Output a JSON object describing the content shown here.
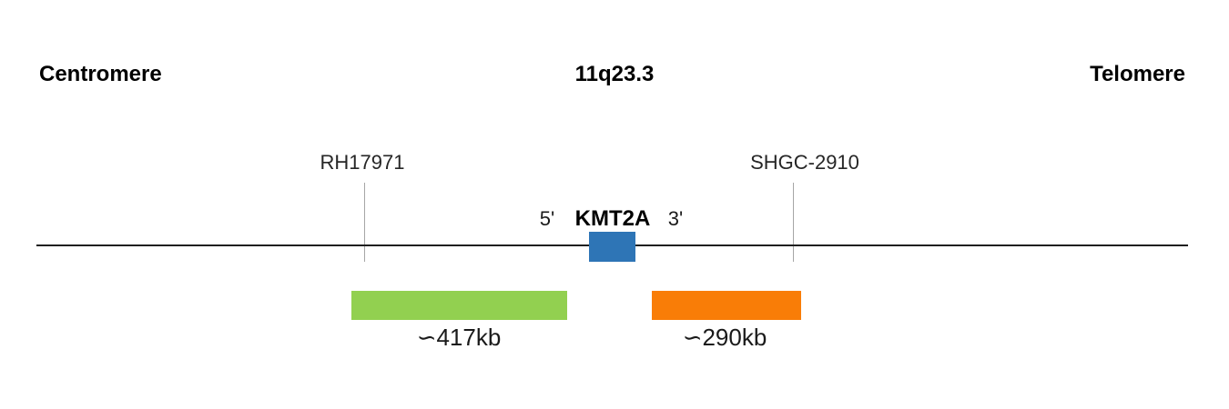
{
  "header": {
    "left_label": "Centromere",
    "region_label": "11q23.3",
    "right_label": "Telomere"
  },
  "markers": [
    {
      "label": "RH17971"
    },
    {
      "label": "SHGC-2910"
    }
  ],
  "gene": {
    "five_prime": "5'",
    "name": "KMT2A",
    "three_prime": "3'"
  },
  "distances": [
    {
      "label": "∽417kb"
    },
    {
      "label": "∽290kb"
    }
  ],
  "colors": {
    "gene_box": "#2E75B6",
    "centromeric_bar": "#92D050",
    "telomeric_bar": "#F97D07",
    "chromosome_line": "#1F1F1F",
    "marker_tick": "#A6A6A6"
  }
}
